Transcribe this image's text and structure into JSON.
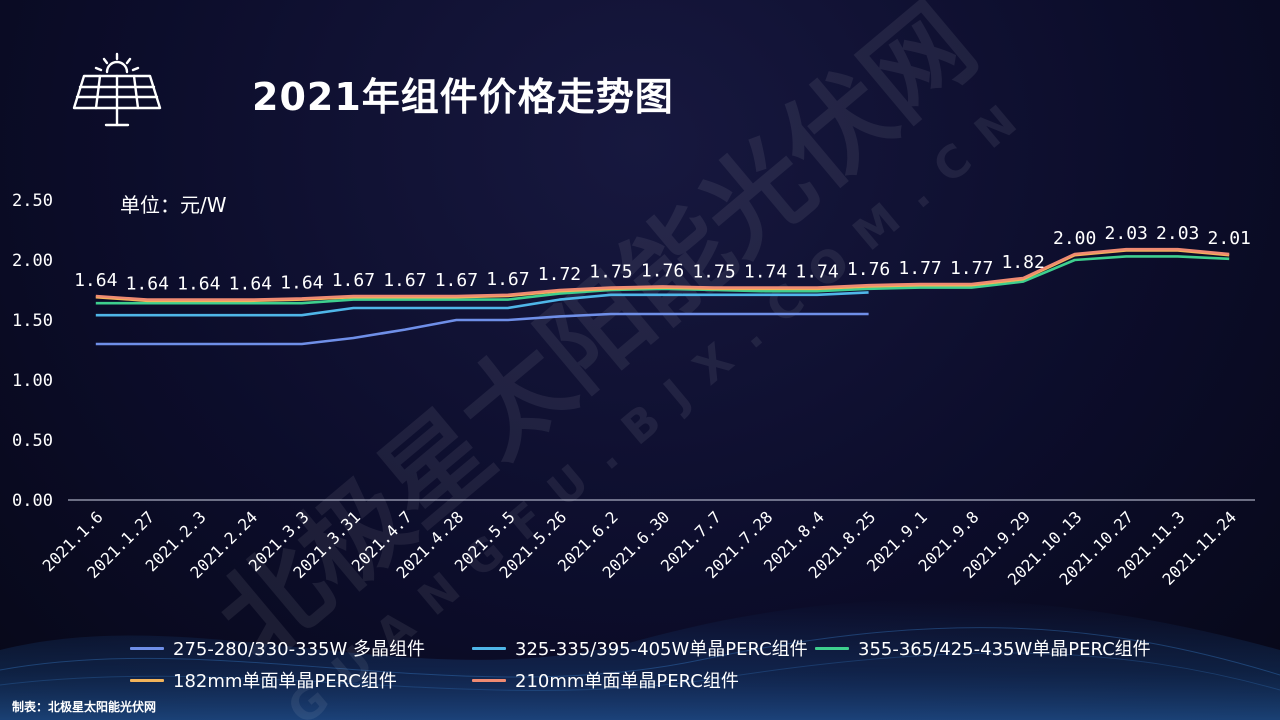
{
  "page": {
    "title": "2021年组件价格走势图",
    "source": "制表：北极星太阳能光伏网",
    "watermark": {
      "brand": "北极星太阳能光伏网",
      "url": "GUANGFU.BJX.COM.CN"
    }
  },
  "colors": {
    "background": "#0c0d2b",
    "text": "#ffffff",
    "axis": "#cfd3e6"
  },
  "chart_data": {
    "type": "line",
    "title": "2021年组件价格走势图",
    "unit_label": "单位：元/W",
    "ylim": [
      0,
      2.5
    ],
    "yticks": [
      "0.00",
      "0.50",
      "1.00",
      "1.50",
      "2.00",
      "2.50"
    ],
    "grid": false,
    "legend_position": "bottom",
    "categories": [
      "2021.1.6",
      "2021.1.27",
      "2021.2.3",
      "2021.2.24",
      "2021.3.3",
      "2021.3.31",
      "2021.4.7",
      "2021.4.28",
      "2021.5.5",
      "2021.5.26",
      "2021.6.2",
      "2021.6.30",
      "2021.7.7",
      "2021.7.28",
      "2021.8.4",
      "2021.8.25",
      "2021.9.1",
      "2021.9.8",
      "2021.9.29",
      "2021.10.13",
      "2021.10.27",
      "2021.11.3",
      "2021.11.24"
    ],
    "data_labels": [
      "1.64",
      "1.64",
      "1.64",
      "1.64",
      "1.64",
      "1.67",
      "1.67",
      "1.67",
      "1.67",
      "1.72",
      "1.75",
      "1.76",
      "1.75",
      "1.74",
      "1.74",
      "1.76",
      "1.77",
      "1.77",
      "1.82",
      "2.00",
      "2.03",
      "2.03",
      "2.01"
    ],
    "series": [
      {
        "name": "275-280/330-335W 多晶组件",
        "color": "#6f8fe8",
        "values": [
          1.3,
          1.3,
          1.3,
          1.3,
          1.3,
          1.35,
          1.42,
          1.5,
          1.5,
          1.53,
          1.55,
          1.55,
          1.55,
          1.55,
          1.55,
          1.55,
          null,
          null,
          null,
          null,
          null,
          null,
          null
        ]
      },
      {
        "name": "325-335/395-405W单晶PERC组件",
        "color": "#4fb6e8",
        "values": [
          1.54,
          1.54,
          1.54,
          1.54,
          1.54,
          1.6,
          1.6,
          1.6,
          1.6,
          1.67,
          1.71,
          1.71,
          1.71,
          1.71,
          1.71,
          1.73,
          null,
          null,
          null,
          null,
          null,
          null,
          null
        ]
      },
      {
        "name": "355-365/425-435W单晶PERC组件",
        "color": "#3ecf8e",
        "values": [
          1.64,
          1.64,
          1.64,
          1.64,
          1.64,
          1.67,
          1.67,
          1.67,
          1.67,
          1.72,
          1.75,
          1.76,
          1.75,
          1.74,
          1.74,
          1.76,
          1.77,
          1.77,
          1.82,
          2.0,
          2.03,
          2.03,
          2.01
        ]
      },
      {
        "name": "182mm单面单晶PERC组件",
        "color": "#f2b35a",
        "values": [
          1.69,
          1.66,
          1.66,
          1.66,
          1.67,
          1.69,
          1.69,
          1.69,
          1.7,
          1.74,
          1.76,
          1.77,
          1.76,
          1.76,
          1.76,
          1.78,
          1.79,
          1.79,
          1.84,
          2.04,
          2.08,
          2.08,
          2.04
        ]
      },
      {
        "name": "210mm单面单晶PERC组件",
        "color": "#ef8a72",
        "values": [
          1.7,
          1.67,
          1.67,
          1.67,
          1.68,
          1.7,
          1.7,
          1.7,
          1.71,
          1.75,
          1.77,
          1.78,
          1.77,
          1.77,
          1.77,
          1.79,
          1.8,
          1.8,
          1.85,
          2.05,
          2.09,
          2.09,
          2.05
        ]
      }
    ]
  }
}
